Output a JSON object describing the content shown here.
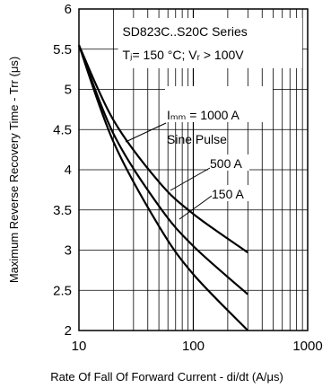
{
  "chart_data": {
    "type": "line",
    "title_line1": "SD823C..S20C Series",
    "title_line2": "Tⱼ= 150 °C; Vᵣ > 100V",
    "xlabel": "Rate Of Fall Of Forward Current - di/dt (A/μs)",
    "ylabel": "Maximum Reverse Recovery Time - Trr (μs)",
    "x_scale": "log",
    "xlim": [
      10,
      1000
    ],
    "ylim": [
      2,
      6
    ],
    "grid": true,
    "x_ticks": [
      "10",
      "100",
      "1000"
    ],
    "y_ticks": [
      "2",
      "2.5",
      "3",
      "3.5",
      "4",
      "4.5",
      "5",
      "5.5",
      "6"
    ],
    "annotations": [
      "Iₘₘ = 1000 A",
      "Sine Pulse",
      "500 A",
      "150 A"
    ],
    "series": [
      {
        "name": "Iₘₘ = 1000 A",
        "x": [
          10,
          20,
          50,
          100,
          300
        ],
        "y": [
          5.55,
          4.62,
          3.85,
          3.45,
          2.97
        ]
      },
      {
        "name": "500 A",
        "x": [
          10,
          20,
          50,
          100,
          300
        ],
        "y": [
          5.55,
          4.45,
          3.55,
          3.05,
          2.45
        ]
      },
      {
        "name": "150 A",
        "x": [
          10,
          20,
          50,
          100,
          300
        ],
        "y": [
          5.55,
          4.35,
          3.3,
          2.7,
          2.0
        ]
      }
    ]
  }
}
